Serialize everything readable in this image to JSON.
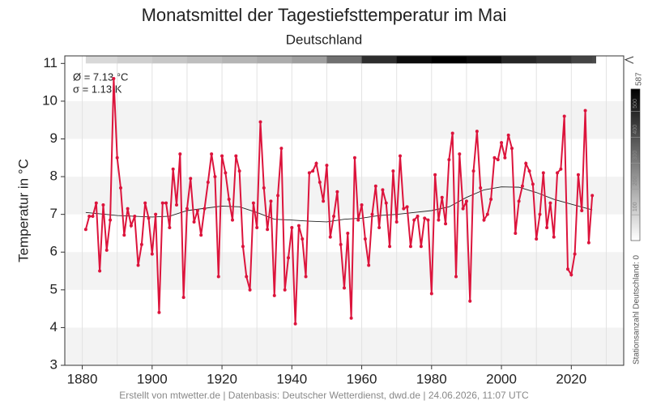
{
  "chart_data": {
    "type": "line",
    "title": "Monatsmittel der Tagestiefsttemperatur im Mai",
    "subtitle": "Deutschland",
    "ylabel": "Temperatur in °C",
    "annotations": [
      "Ø = 7.13 °C",
      "σ = 1.13 K"
    ],
    "footer": "Erstellt von mtwetter.de | Datenbasis: Deutscher Wetterdienst, dwd.de | 24.06.2026, 11:07 UTC",
    "x": [
      1881,
      1882,
      1883,
      1884,
      1885,
      1886,
      1887,
      1888,
      1889,
      1890,
      1891,
      1892,
      1893,
      1894,
      1895,
      1896,
      1897,
      1898,
      1899,
      1900,
      1901,
      1902,
      1903,
      1904,
      1905,
      1906,
      1907,
      1908,
      1909,
      1910,
      1911,
      1912,
      1913,
      1914,
      1915,
      1916,
      1917,
      1918,
      1919,
      1920,
      1921,
      1922,
      1923,
      1924,
      1925,
      1926,
      1927,
      1928,
      1929,
      1930,
      1931,
      1932,
      1933,
      1934,
      1935,
      1936,
      1937,
      1938,
      1939,
      1940,
      1941,
      1942,
      1943,
      1944,
      1945,
      1946,
      1947,
      1948,
      1949,
      1950,
      1951,
      1952,
      1953,
      1954,
      1955,
      1956,
      1957,
      1958,
      1959,
      1960,
      1961,
      1962,
      1963,
      1964,
      1965,
      1966,
      1967,
      1968,
      1969,
      1970,
      1971,
      1972,
      1973,
      1974,
      1975,
      1976,
      1977,
      1978,
      1979,
      1980,
      1981,
      1982,
      1983,
      1984,
      1985,
      1986,
      1987,
      1988,
      1989,
      1990,
      1991,
      1992,
      1993,
      1994,
      1995,
      1996,
      1997,
      1998,
      1999,
      2000,
      2001,
      2002,
      2003,
      2004,
      2005,
      2006,
      2007,
      2008,
      2009,
      2010,
      2011,
      2012,
      2013,
      2014,
      2015,
      2016,
      2017,
      2018,
      2019,
      2020,
      2021,
      2022,
      2023,
      2024,
      2025,
      2026
    ],
    "series": [
      {
        "name": "Monatsmittel",
        "color": "#dc143c",
        "values": [
          6.6,
          6.95,
          6.95,
          7.3,
          5.5,
          7.25,
          6.05,
          6.85,
          10.6,
          8.5,
          7.7,
          6.45,
          7.15,
          6.7,
          6.95,
          5.65,
          6.2,
          7.3,
          6.9,
          5.95,
          7.0,
          4.4,
          7.3,
          7.3,
          6.65,
          8.2,
          7.25,
          8.6,
          4.8,
          7.15,
          7.95,
          6.8,
          7.1,
          6.45,
          7.15,
          7.85,
          8.6,
          8.0,
          5.35,
          8.55,
          8.1,
          7.4,
          6.85,
          8.55,
          8.15,
          6.15,
          5.35,
          5.0,
          7.3,
          6.65,
          9.45,
          7.7,
          6.6,
          7.35,
          4.85,
          7.5,
          8.75,
          5.0,
          5.85,
          6.65,
          4.1,
          6.7,
          6.35,
          5.35,
          8.1,
          8.15,
          8.35,
          7.85,
          7.35,
          8.3,
          6.4,
          6.95,
          7.6,
          6.2,
          5.05,
          6.5,
          4.25,
          8.5,
          6.85,
          7.25,
          6.35,
          5.65,
          7.0,
          7.75,
          6.65,
          7.65,
          7.3,
          6.15,
          8.15,
          6.8,
          8.55,
          7.15,
          7.2,
          6.15,
          6.85,
          6.95,
          6.15,
          6.9,
          6.85,
          4.9,
          8.05,
          6.85,
          7.45,
          6.75,
          8.45,
          9.15,
          5.35,
          8.6,
          7.15,
          7.35,
          4.7,
          8.15,
          9.2,
          7.7,
          6.85,
          7.0,
          7.4,
          8.5,
          8.45,
          8.9,
          8.5,
          9.1,
          8.75,
          6.5,
          7.35,
          7.75,
          8.35,
          8.15,
          7.8,
          6.35,
          7.0,
          8.1,
          6.65,
          7.3,
          6.4,
          8.1,
          8.2,
          9.6,
          5.55,
          5.4,
          5.95,
          8.05,
          7.1,
          9.75,
          6.25,
          7.5
        ]
      },
      {
        "name": "Trend",
        "color": "#222222",
        "x": [
          1881,
          1890,
          1900,
          1905,
          1910,
          1920,
          1925,
          1930,
          1935,
          1940,
          1945,
          1950,
          1955,
          1960,
          1965,
          1970,
          1975,
          1980,
          1985,
          1990,
          1995,
          2000,
          2005,
          2010,
          2015,
          2020,
          2026
        ],
        "values": [
          7.05,
          6.97,
          6.93,
          6.95,
          7.1,
          7.22,
          7.2,
          7.05,
          6.87,
          6.85,
          6.82,
          6.8,
          6.87,
          6.9,
          6.97,
          7.0,
          7.05,
          7.1,
          7.2,
          7.45,
          7.65,
          7.73,
          7.72,
          7.58,
          7.4,
          7.27,
          7.12
        ]
      }
    ],
    "stations": {
      "label": "Stationsanzahl Deutschland: 0",
      "x": [
        1881,
        1890,
        1900,
        1910,
        1920,
        1930,
        1940,
        1950,
        1960,
        1970,
        1980,
        1990,
        2000,
        2010,
        2020,
        2026
      ],
      "values": [
        90,
        110,
        130,
        150,
        170,
        190,
        220,
        330,
        480,
        560,
        587,
        560,
        500,
        470,
        430,
        420
      ],
      "clim": [
        0,
        587
      ],
      "cticks": [
        100,
        200,
        300,
        400,
        500,
        587
      ]
    },
    "xlim": [
      1875,
      2035
    ],
    "ylim": [
      3,
      11.2
    ],
    "xticks": [
      1880,
      1900,
      1920,
      1940,
      1960,
      1980,
      2000,
      2020
    ],
    "yticks": [
      3,
      4,
      5,
      6,
      7,
      8,
      9,
      10,
      11
    ],
    "grid": true
  }
}
